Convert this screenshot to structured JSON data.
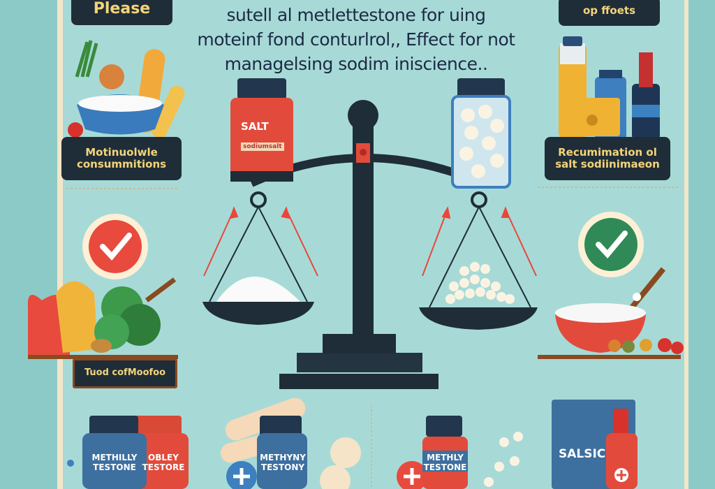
{
  "top_left_badge": "Please",
  "top_right_badge": "op ffoets",
  "headline": {
    "lines": [
      "sutell al metlettestone for uing",
      "moteinf fond conturlrol,, Effect for not",
      "managelsing  sodim iniscience.."
    ]
  },
  "left_card": {
    "lines": [
      "Motinuolwle",
      "consummitions"
    ]
  },
  "right_card": {
    "lines": [
      "Recumimation ol",
      "salt sodiinimaeon"
    ]
  },
  "food_sign": "Tuod cofMoofoo",
  "salt_jar": {
    "label": "SALT",
    "sublabel": "sodiumsalt"
  },
  "salt_bag": "SALSIC",
  "bottles": [
    {
      "lines": [
        "METHILLY",
        "TESTONE"
      ]
    },
    {
      "lines": [
        "OBLEY",
        "TESTORE"
      ]
    },
    {
      "lines": [
        "METHYNY",
        "TESTONY"
      ]
    },
    {
      "lines": [
        "METHLY",
        "TESTONE"
      ]
    }
  ],
  "colors": {
    "background": "#a7dad7",
    "dark": "#1f2d38",
    "accent_red": "#e8473a",
    "check_green": "#2e8b57",
    "label_yellow": "#f4d47a"
  }
}
